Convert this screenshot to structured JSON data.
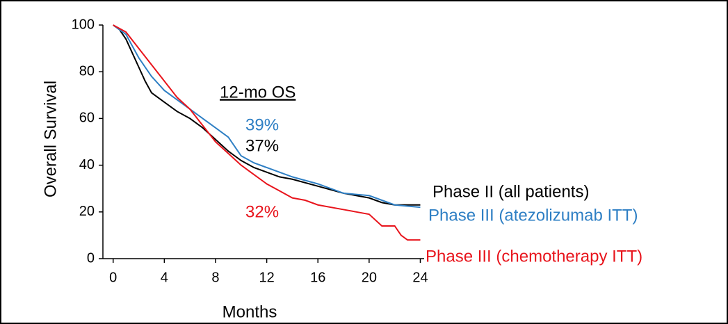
{
  "chart_data": {
    "type": "line",
    "xlabel": "Months",
    "ylabel": "Overall Survival",
    "xlim": [
      -0.8,
      24.3
    ],
    "ylim": [
      0,
      100
    ],
    "xticks": [
      0,
      4,
      8,
      12,
      16,
      20,
      24
    ],
    "yticks": [
      0,
      20,
      40,
      60,
      80,
      100
    ],
    "series": [
      {
        "name": "Phase II (all patients)",
        "color": "#000000",
        "x": [
          0,
          0.5,
          1,
          1.5,
          2,
          2.5,
          3,
          4,
          5,
          6,
          7,
          8,
          9,
          10,
          11,
          12,
          13,
          14,
          16,
          18,
          20,
          21,
          22,
          24
        ],
        "values": [
          100,
          98,
          94,
          88,
          82,
          76,
          71,
          67,
          63,
          60,
          56,
          51,
          46,
          42,
          39,
          37,
          35,
          34,
          31,
          28,
          26,
          24,
          23,
          23
        ]
      },
      {
        "name": "Phase III (atezolizumab ITT)",
        "color": "#2e7fc4",
        "x": [
          0,
          1,
          2,
          3,
          4,
          5,
          6,
          7,
          8,
          9,
          10,
          11,
          12,
          13,
          14,
          16,
          18,
          20,
          21,
          22,
          24
        ],
        "values": [
          100,
          96,
          86,
          78,
          72,
          68,
          64,
          60,
          56,
          52,
          44,
          41,
          39,
          37,
          35,
          32,
          28,
          27,
          25,
          23,
          22
        ]
      },
      {
        "name": "Phase III (chemotherapy ITT)",
        "color": "#e8141c",
        "x": [
          0,
          1,
          2,
          3,
          4,
          5,
          6,
          7,
          8,
          9,
          10,
          11,
          12,
          13,
          14,
          15,
          16,
          18,
          19,
          20,
          21,
          22,
          22.5,
          23,
          24
        ],
        "values": [
          100,
          97,
          90,
          83,
          76,
          69,
          64,
          57,
          50,
          45,
          40,
          36,
          32,
          29,
          26,
          25,
          23,
          21,
          20,
          19,
          14,
          14,
          10,
          8,
          8
        ]
      }
    ],
    "annotations": [
      {
        "text": "12-mo OS",
        "color": "#000000"
      },
      {
        "text": "39%",
        "color": "#2e7fc4"
      },
      {
        "text": "37%",
        "color": "#000000"
      },
      {
        "text": "32%",
        "color": "#e8141c"
      }
    ]
  }
}
